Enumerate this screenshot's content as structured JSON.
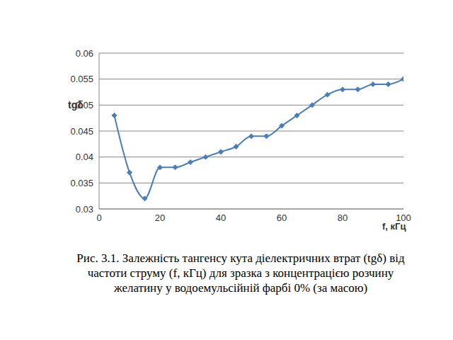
{
  "chart_data": {
    "type": "line",
    "title": "Рис. 3.1. Залежність тангенсу кута діелектричних втрат (tgδ) від частоти струму (f, кГц) для зразка з концентрацією розчину желатину у водоемульсійній фарбі 0% (за масою)",
    "x_label": "f, кГц",
    "y_label": "tgδ",
    "x": [
      5,
      10,
      15,
      20,
      25,
      30,
      35,
      40,
      45,
      50,
      55,
      60,
      65,
      70,
      75,
      80,
      85,
      90,
      95,
      100
    ],
    "series": [
      {
        "name": "tgδ",
        "color": "#4a7ebb",
        "marker": "diamond",
        "values": [
          0.048,
          0.037,
          0.032,
          0.038,
          0.038,
          0.039,
          0.04,
          0.041,
          0.042,
          0.044,
          0.044,
          0.046,
          0.048,
          0.05,
          0.052,
          0.053,
          0.053,
          0.054,
          0.054,
          0.055
        ]
      }
    ],
    "xlim": [
      0,
      100
    ],
    "xticks": [
      0,
      20,
      40,
      60,
      80,
      100
    ],
    "ylim": [
      0.03,
      0.06
    ],
    "yticks": [
      0.03,
      0.035,
      0.04,
      0.045,
      0.05,
      0.055,
      0.06
    ],
    "grid": true
  }
}
